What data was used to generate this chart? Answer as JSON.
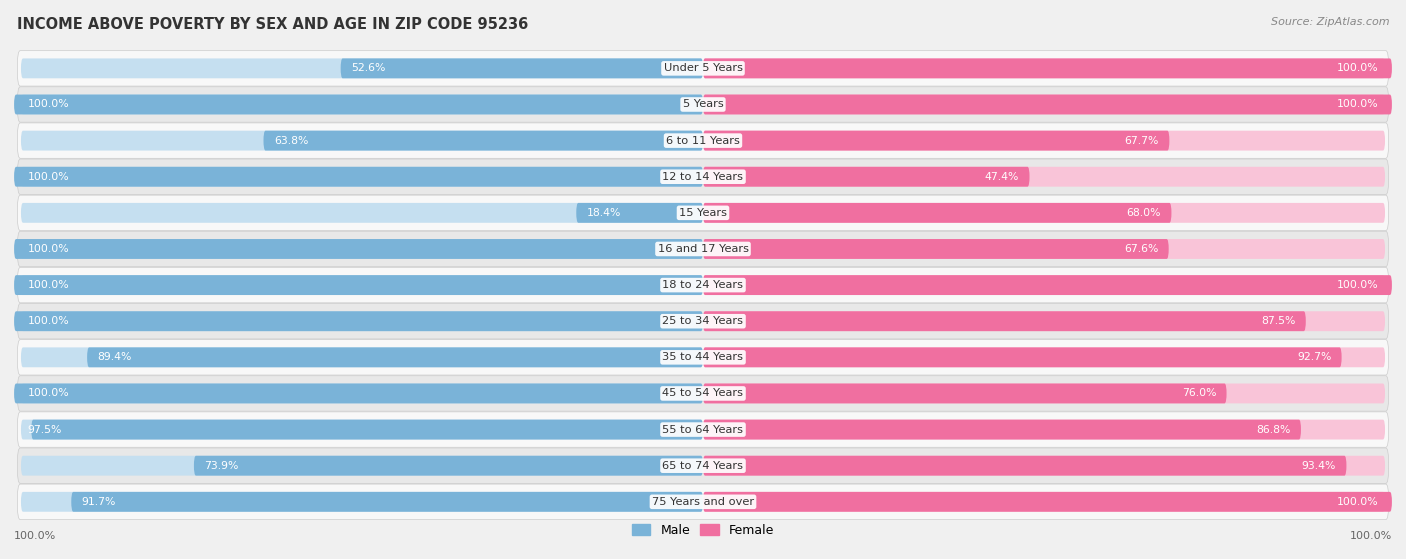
{
  "title": "INCOME ABOVE POVERTY BY SEX AND AGE IN ZIP CODE 95236",
  "source": "Source: ZipAtlas.com",
  "categories": [
    "Under 5 Years",
    "5 Years",
    "6 to 11 Years",
    "12 to 14 Years",
    "15 Years",
    "16 and 17 Years",
    "18 to 24 Years",
    "25 to 34 Years",
    "35 to 44 Years",
    "45 to 54 Years",
    "55 to 64 Years",
    "65 to 74 Years",
    "75 Years and over"
  ],
  "male_values": [
    52.6,
    100.0,
    63.8,
    100.0,
    18.4,
    100.0,
    100.0,
    100.0,
    89.4,
    100.0,
    97.5,
    73.9,
    91.7
  ],
  "female_values": [
    100.0,
    100.0,
    67.7,
    47.4,
    68.0,
    67.6,
    100.0,
    87.5,
    92.7,
    76.0,
    86.8,
    93.4,
    100.0
  ],
  "male_color": "#7ab3d8",
  "female_color": "#f06fa0",
  "male_color_light": "#c5dff0",
  "female_color_light": "#f9c4d8",
  "background_color": "#f0f0f0",
  "row_bg_light": "#f8f8f8",
  "row_bg_dark": "#e8e8e8",
  "legend_male": "Male",
  "legend_female": "Female"
}
